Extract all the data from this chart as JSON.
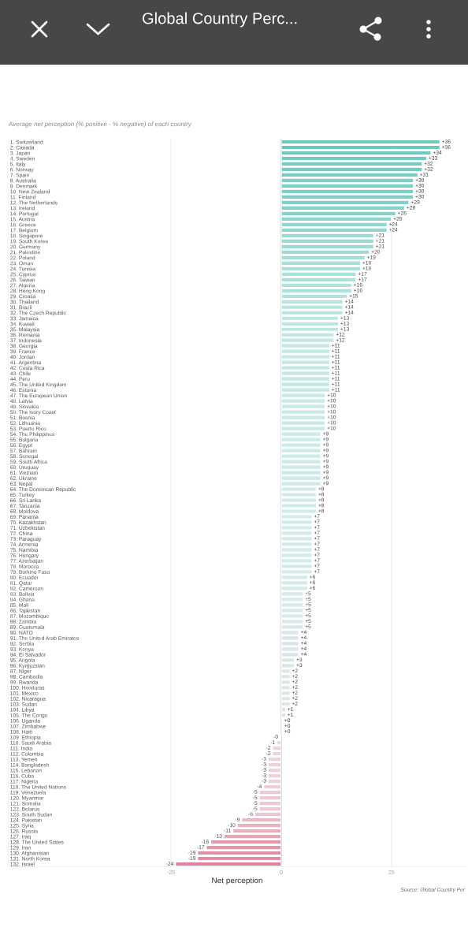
{
  "chart_data": {
    "type": "bar",
    "orientation": "horizontal",
    "title": "Global Country Perc...",
    "subtitle": "Average net perception (% positive - % negative) of each country",
    "xlabel": "Net perception",
    "annotations": [
      "Source: Global Country Per"
    ],
    "categories": [
      "1. Switzerland",
      "2. Canada",
      "3. Japan",
      "4. Sweden",
      "5. Italy",
      "6. Norway",
      "7. Spain",
      "8. Australia",
      "9. Denmark",
      "10. New Zealand",
      "11. Finland",
      "12. The Netherlands",
      "13. Ireland",
      "14. Portugal",
      "15. Austria",
      "16. Greece",
      "17. Belgium",
      "18. Singapore",
      "19. South Korea",
      "20. Germany",
      "21. Palestine",
      "22. Poland",
      "23. Oman",
      "24. Tunisia",
      "25. Cyprus",
      "26. Taiwan",
      "27. Algeria",
      "28. Hong Kong",
      "29. Croatia",
      "30. Thailand",
      "31. Brazil",
      "32. The Czech Republic",
      "33. Jamaica",
      "34. Kuwait",
      "35. Malaysia",
      "36. Romania",
      "37. Indonesia",
      "38. Georgia",
      "39. France",
      "40. Jordan",
      "41. Argentina",
      "42. Costa Rica",
      "43. Chile",
      "44. Peru",
      "45. The United Kingdom",
      "46. Estonia",
      "47. The European Union",
      "48. Latvia",
      "49. Slovakia",
      "50. The Ivory Coast",
      "51. Bosnia",
      "52. Lithuania",
      "53. Puerto Rico",
      "54. The Philippines",
      "55. Bulgaria",
      "56. Egypt",
      "57. Bahrain",
      "58. Senegal",
      "59. South Africa",
      "60. Uruguay",
      "61. Vietnam",
      "62. Ukraine",
      "63. Nepal",
      "64. The Dominican Republic",
      "65. Turkey",
      "66. Sri Lanka",
      "67. Tanzania",
      "68. Moldova",
      "69. Panama",
      "70. Kazakhstan",
      "71. Uzbekistan",
      "72. China",
      "73. Paraguay",
      "74. Armenia",
      "75. Namibia",
      "76. Hungary",
      "77. Azerbaijan",
      "78. Morocco",
      "79. Burkino Faso",
      "80. Ecuador",
      "81. Qatar",
      "82. Cameroon",
      "83. Bolivia",
      "84. Ghana",
      "85. Mali",
      "86. Tajikistan",
      "87. Mozambique",
      "88. Zambia",
      "89. Guatemala",
      "90. NATO",
      "91. The United Arab Emirates",
      "92. Serbia",
      "93. Kenya",
      "94. El Salvador",
      "95. Angola",
      "96. Kyrgyzstan",
      "97. Niger",
      "98. Cambodia",
      "99. Rwanda",
      "100. Honduras",
      "101. Mexico",
      "102. Nicaragua",
      "103. Sudan",
      "104. Libya",
      "105. The Congo",
      "106. Uganda",
      "107. Zimbabwe",
      "108. Haiti",
      "109. Ethiopia",
      "110. Saudi Arabia",
      "111. India",
      "112. Colombia",
      "113. Yemen",
      "114. Bangladesh",
      "115. Lebanon",
      "116. Cuba",
      "117. Nigeria",
      "118. The United Nations",
      "119. Venezuela",
      "120. Myanmar",
      "121. Somalia",
      "122. Belarus",
      "123. South Sudan",
      "124. Pakistan",
      "125. Syria",
      "126. Russia",
      "127. Iraq",
      "128. The United States",
      "129. Iran",
      "130. Afghanistan",
      "131. North Korea",
      "132. Israel"
    ],
    "values": [
      36,
      36,
      34,
      33,
      32,
      32,
      31,
      30,
      30,
      30,
      30,
      29,
      28,
      26,
      25,
      24,
      24,
      21,
      21,
      21,
      20,
      19,
      18,
      18,
      17,
      17,
      16,
      16,
      15,
      14,
      14,
      14,
      13,
      13,
      13,
      12,
      12,
      11,
      11,
      11,
      11,
      11,
      11,
      11,
      11,
      11,
      10,
      10,
      10,
      10,
      10,
      10,
      10,
      9,
      9,
      9,
      9,
      9,
      9,
      9,
      9,
      9,
      9,
      8,
      8,
      8,
      8,
      8,
      7,
      7,
      7,
      7,
      7,
      7,
      7,
      7,
      7,
      7,
      7,
      6,
      6,
      6,
      5,
      5,
      5,
      5,
      5,
      5,
      5,
      4,
      4,
      4,
      4,
      4,
      3,
      3,
      2,
      2,
      2,
      2,
      2,
      2,
      2,
      1,
      1,
      0.3,
      0.3,
      0.3,
      -0.3,
      -1,
      -2,
      -2,
      -3,
      -3,
      -3,
      -3,
      -3,
      -4,
      -5,
      -5,
      -5,
      -5,
      -6,
      -9,
      -10,
      -11,
      -13,
      -16,
      -17,
      -19,
      -19,
      -24
    ],
    "value_labels": [
      "+36",
      "+36",
      "+34",
      "+33",
      "+32",
      "+32",
      "+31",
      "+30",
      "+30",
      "+30",
      "+30",
      "+29",
      "+28",
      "+26",
      "+25",
      "+24",
      "+24",
      "+21",
      "+21",
      "+21",
      "+20",
      "+19",
      "+18",
      "+18",
      "+17",
      "+17",
      "+16",
      "+16",
      "+15",
      "+14",
      "+14",
      "+14",
      "+13",
      "+13",
      "+13",
      "+12",
      "+12",
      "+11",
      "+11",
      "+11",
      "+11",
      "+11",
      "+11",
      "+11",
      "+11",
      "+11",
      "+10",
      "+10",
      "+10",
      "+10",
      "+10",
      "+10",
      "+10",
      "+9",
      "+9",
      "+9",
      "+9",
      "+9",
      "+9",
      "+9",
      "+9",
      "+9",
      "+9",
      "+8",
      "+8",
      "+8",
      "+8",
      "+8",
      "+7",
      "+7",
      "+7",
      "+7",
      "+7",
      "+7",
      "+7",
      "+7",
      "+7",
      "+7",
      "+7",
      "+6",
      "+6",
      "+6",
      "+5",
      "+5",
      "+5",
      "+5",
      "+5",
      "+5",
      "+5",
      "+4",
      "+4",
      "+4",
      "+4",
      "+4",
      "+3",
      "+3",
      "+2",
      "+2",
      "+2",
      "+2",
      "+2",
      "+2",
      "+2",
      "+1",
      "+1",
      "+0",
      "+0",
      "+0",
      "-0",
      "-1",
      "-2",
      "-2",
      "-3",
      "-3",
      "-3",
      "-3",
      "-3",
      "-4",
      "-5",
      "-5",
      "-5",
      "-5",
      "-6",
      "-9",
      "-10",
      "-11",
      "-13",
      "-16",
      "-17",
      "-19",
      "-19",
      "-24"
    ],
    "colors": [
      "#6cc8c0",
      "#6cc8c0",
      "#70cac2",
      "#73cbc3",
      "#76ccc4",
      "#76ccc4",
      "#79cdc5",
      "#7ccec7",
      "#7ccec7",
      "#7ccec7",
      "#7ccec7",
      "#80cfc8",
      "#83d1ca",
      "#8ad3cc",
      "#8ed5ce",
      "#92d6cf",
      "#92d6cf",
      "#9cdad4",
      "#9cdad4",
      "#9cdad4",
      "#a0dbd6",
      "#a4ddd8",
      "#a8dfd9",
      "#a8dfd9",
      "#ace0db",
      "#ace0db",
      "#b0e2dc",
      "#b0e2dc",
      "#b4e3de",
      "#b8e4e0",
      "#b8e4e0",
      "#b8e4e0",
      "#bce6e1",
      "#bce6e1",
      "#bce6e1",
      "#c0e7e3",
      "#c0e7e3",
      "#c4e9e5",
      "#c4e9e5",
      "#c4e9e5",
      "#c4e9e5",
      "#c4e9e5",
      "#c4e9e5",
      "#c4e9e5",
      "#c4e9e5",
      "#c4e9e5",
      "#c8eae6",
      "#c8eae6",
      "#c8eae6",
      "#c8eae6",
      "#c8eae6",
      "#c8eae6",
      "#c8eae6",
      "#cbebe8",
      "#cbebe8",
      "#cbebe8",
      "#cbebe8",
      "#cbebe8",
      "#cbebe8",
      "#cbebe8",
      "#cbebe8",
      "#cbebe8",
      "#cbebe8",
      "#cfebe9",
      "#cfebe9",
      "#cfebe9",
      "#cfebe9",
      "#cfebe9",
      "#d2ece9",
      "#d2ece9",
      "#d2ece9",
      "#d2ece9",
      "#d2ece9",
      "#d2ece9",
      "#d2ece9",
      "#d2ece9",
      "#d2ece9",
      "#d2ece9",
      "#d2ece9",
      "#d5eae9",
      "#d5eae9",
      "#d5eae9",
      "#d8e9e9",
      "#d8e9e9",
      "#d8e9e9",
      "#d8e9e9",
      "#d8e9e9",
      "#d8e9e9",
      "#d8e9e9",
      "#dae7e8",
      "#dae7e8",
      "#dae7e8",
      "#dae7e8",
      "#dae7e8",
      "#dce6e7",
      "#dce6e7",
      "#dee4e6",
      "#dee4e6",
      "#dee4e6",
      "#dee4e6",
      "#dee4e6",
      "#dee4e6",
      "#dee4e6",
      "#e0e3e5",
      "#e0e3e5",
      "#e1e2e4",
      "#e1e2e4",
      "#e1e2e4",
      "#e8dde0",
      "#eed9de",
      "#eed5dc",
      "#eed5dc",
      "#edd2d9",
      "#edd2d9",
      "#edd2d9",
      "#edd2d9",
      "#edd2d9",
      "#ecced6",
      "#ebcad3",
      "#ebcad3",
      "#ebcad3",
      "#ebcad3",
      "#eac6d0",
      "#e9b9c6",
      "#e8b4c2",
      "#e7afbe",
      "#e6a6b7",
      "#e499ad",
      "#e495aa",
      "#e38ca3",
      "#e38ca3",
      "#e0809a"
    ],
    "xlim": [
      -62,
      42
    ],
    "xticks": [
      -25,
      0,
      25
    ],
    "grid": "x",
    "ref_lines": [
      {
        "axis": "x",
        "value": 0,
        "color": "#5f6b70"
      }
    ]
  }
}
